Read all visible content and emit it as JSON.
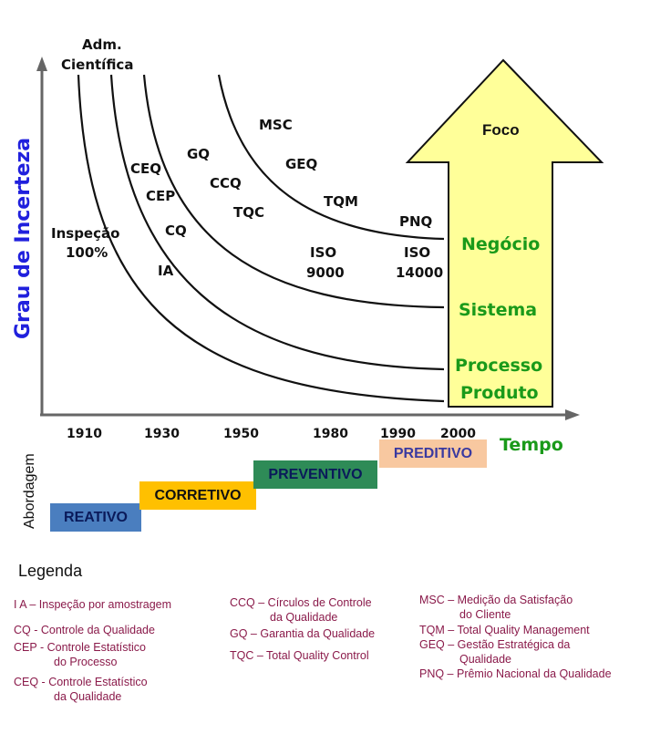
{
  "y_axis_label": "Grau de Incerteza",
  "x_axis_label": "Tempo",
  "years": [
    "1910",
    "1930",
    "1950",
    "1980",
    "1990",
    "2000"
  ],
  "curve_labels": {
    "adm": [
      "Adm.",
      "Científica"
    ],
    "inspecao": [
      "Inspeção",
      "100%"
    ],
    "ia": "IA",
    "cq": "CQ",
    "cep": "CEP",
    "ceq": "CEQ",
    "gq": "GQ",
    "ccq": "CCQ",
    "tqc": "TQC",
    "msc": "MSC",
    "geq": "GEQ",
    "tqm": "TQM",
    "pnq": "PNQ",
    "iso9000": [
      "ISO",
      "9000"
    ],
    "iso14000": [
      "ISO",
      "14000"
    ]
  },
  "arrow": {
    "title": "Foco",
    "levels": [
      "Negócio",
      "Sistema",
      "Processo",
      "Produto"
    ],
    "fill": "#ffff99",
    "text_color": "#1a9a1a"
  },
  "abordagem_label": "Abordagem",
  "approaches": [
    {
      "label": "REATIVO",
      "bg": "#4a7ebf"
    },
    {
      "label": "CORRETIVO",
      "bg": "#ffc000"
    },
    {
      "label": "PREVENTIVO",
      "bg": "#2e8b57"
    },
    {
      "label": "PREDITIVO",
      "bg": "#f8c8a0"
    }
  ],
  "legend": {
    "title": "Legenda",
    "col1": [
      "I A – Inspeção por amostragem",
      "CQ - Controle da Qualidade",
      "CEP - Controle Estatístico",
      "do Processo",
      "CEQ - Controle Estatístico",
      "da Qualidade"
    ],
    "col2": [
      "CCQ – Círculos de Controle",
      "da Qualidade",
      "GQ – Garantia da Qualidade",
      "TQC – Total Quality Control"
    ],
    "col3": [
      "MSC – Medição da Satisfação",
      "do Cliente",
      "TQM – Total Quality Management",
      "GEQ – Gestão Estratégica da",
      "Qualidade",
      "PNQ – Prêmio Nacional da Qualidade"
    ]
  }
}
